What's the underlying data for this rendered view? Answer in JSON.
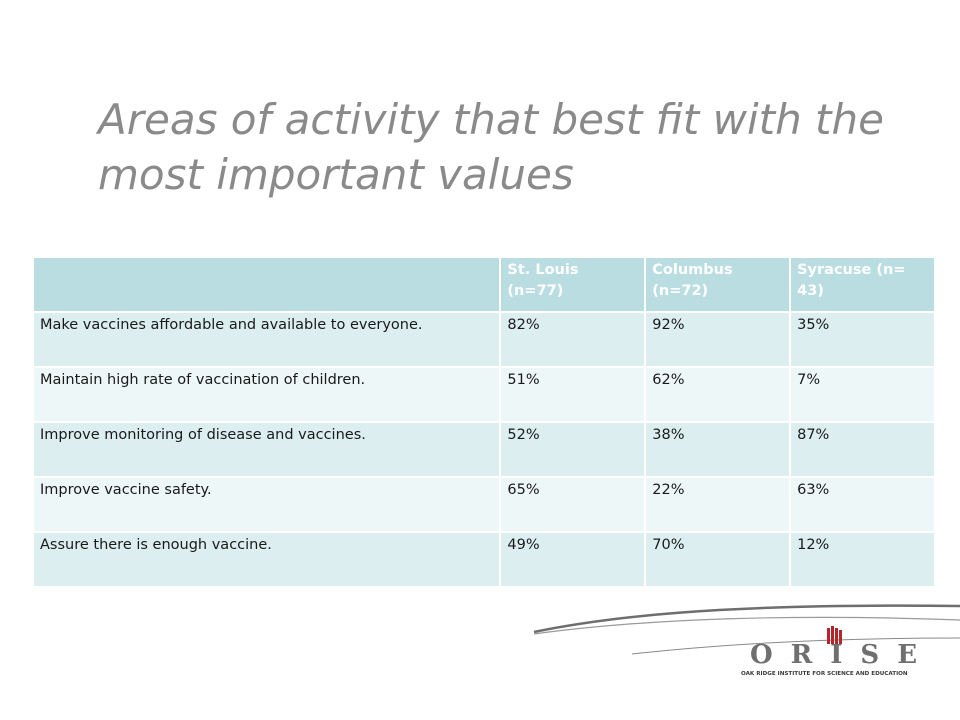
{
  "slide": {
    "title": "Areas of activity that best fit with the most important values"
  },
  "table": {
    "headers": [
      "",
      "St. Louis (n=77)",
      "Columbus (n=72)",
      "Syracuse (n=  43)"
    ],
    "rows": [
      {
        "activity": "Make vaccines affordable and available to everyone.",
        "st_louis": "82%",
        "columbus": "92%",
        "syracuse": "35%"
      },
      {
        "activity": "Maintain high rate of vaccination of children.",
        "st_louis": "51%",
        "columbus": "62%",
        "syracuse": "7%"
      },
      {
        "activity": "Improve monitoring of disease and vaccines.",
        "st_louis": "52%",
        "columbus": "38%",
        "syracuse": "87%"
      },
      {
        "activity": "Improve vaccine safety.",
        "st_louis": "65%",
        "columbus": "22%",
        "syracuse": "63%"
      },
      {
        "activity": "Assure there is enough vaccine.",
        "st_louis": "49%",
        "columbus": "70%",
        "syracuse": "12%"
      }
    ]
  },
  "logo": {
    "name": "ORISE",
    "tagline": "OAK RIDGE INSTITUTE FOR SCIENCE AND EDUCATION"
  },
  "colors": {
    "title": "#8a8a8a",
    "header_bg": "#b9dde1",
    "row_odd_bg": "#dceef0",
    "row_even_bg": "#eef7f8",
    "logo_accent": "#b5262b"
  }
}
